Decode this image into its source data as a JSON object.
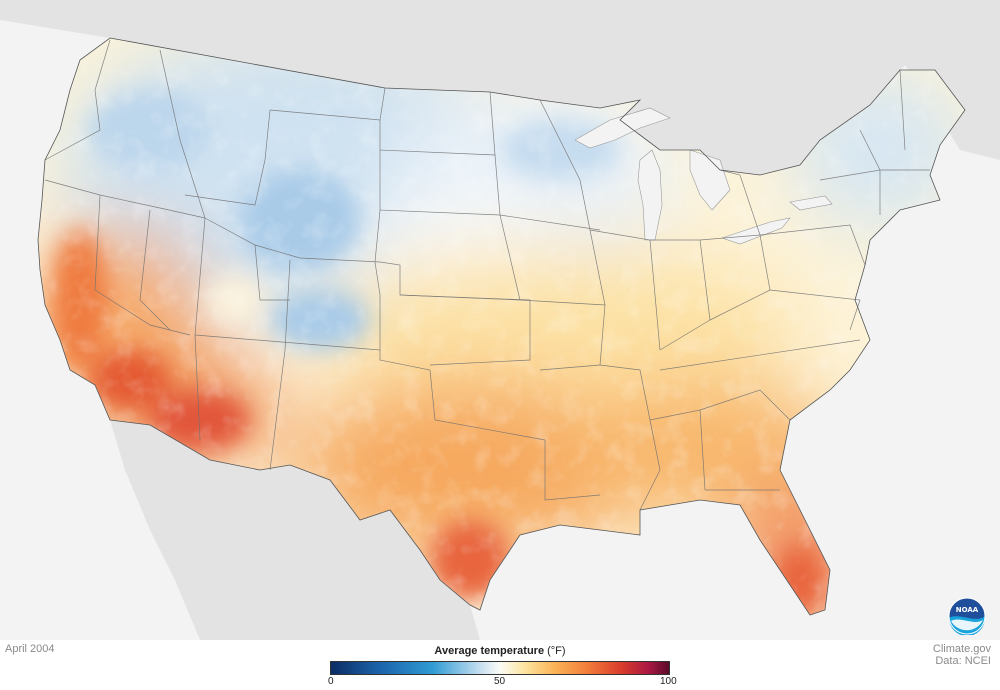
{
  "map": {
    "date": "April 2004",
    "credits": [
      "Climate.gov",
      "Data: NCEI"
    ],
    "legend": {
      "title": "Average temperature",
      "unit": "(°F)",
      "min": 0,
      "mid": 50,
      "max": 100,
      "ticks": [
        "0",
        "50",
        "100"
      ]
    },
    "logo_text": "NOAA",
    "colors": {
      "cold": "#1c65ad",
      "neutral": "#fbfbf6",
      "warm": "#fbb457",
      "hot": "#d83b2c",
      "land_background": "#e3e3e3",
      "water_background": "#f3f3f3"
    }
  }
}
